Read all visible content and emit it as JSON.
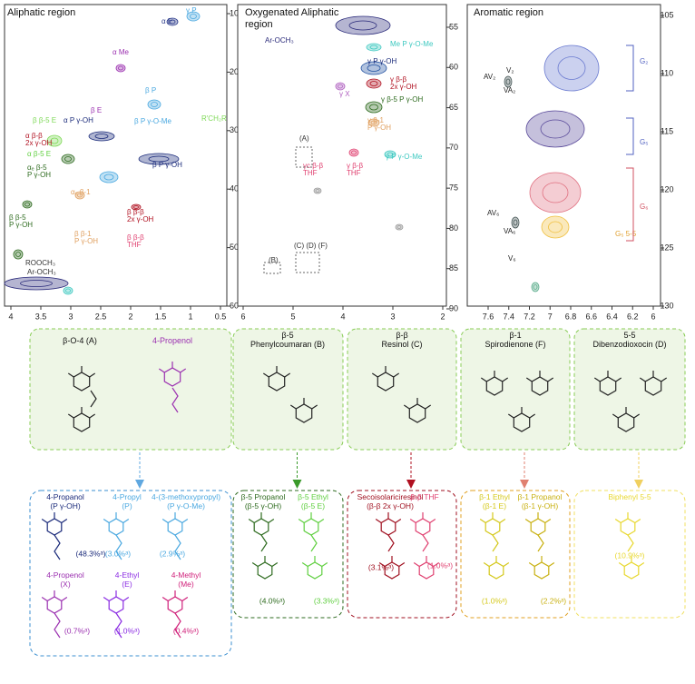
{
  "panels": [
    {
      "title": [
        "Aliphatic region"
      ],
      "xticks": [
        4,
        3.5,
        3,
        2.5,
        2,
        1.5,
        1,
        0.5
      ],
      "yticks": [
        10,
        20,
        30,
        40,
        50,
        60
      ],
      "labels": [
        {
          "lines": [
            "γ P"
          ],
          "color": "#4aa8e0"
        },
        {
          "lines": [
            "α E"
          ],
          "color": "#2a3a8a"
        },
        {
          "lines": [
            "α Me"
          ],
          "color": "#9b30b0"
        },
        {
          "lines": [
            "β P"
          ],
          "color": "#4aa8e0"
        },
        {
          "lines": [
            "β E"
          ],
          "color": "#9b30b0"
        },
        {
          "lines": [
            "β P γ-O-Me"
          ],
          "color": "#4aa8e0"
        },
        {
          "lines": [
            "R'CH₂R"
          ],
          "color": "#7ed957"
        },
        {
          "lines": [
            "β β-5 E"
          ],
          "color": "#7ed957"
        },
        {
          "lines": [
            "α P γ-OH"
          ],
          "color": "#1a2a7a"
        },
        {
          "lines": [
            "α β-β",
            "2x γ-OH"
          ],
          "color": "#b01020"
        },
        {
          "lines": [
            "α β-5 E"
          ],
          "color": "#5fcf3f"
        },
        {
          "lines": [
            "αₑ β-5",
            "P γ-OH"
          ],
          "color": "#2e6b1f"
        },
        {
          "lines": [
            "αₑ β-1"
          ],
          "color": "#e0a060"
        },
        {
          "lines": [
            "β P γ-OH"
          ],
          "color": "#1a2a7a"
        },
        {
          "lines": [
            "β β-β",
            "2x γ-OH"
          ],
          "color": "#b01020"
        },
        {
          "lines": [
            "β β-5",
            "P γ-OH"
          ],
          "color": "#2e6b1f"
        },
        {
          "lines": [
            "β β-1",
            "P γ-OH"
          ],
          "color": "#e0a060"
        },
        {
          "lines": [
            "β β-β",
            "THF"
          ],
          "color": "#e04070"
        },
        {
          "lines": [
            "ROOCH₃"
          ],
          "color": "#333333"
        },
        {
          "lines": [
            "Ar-OCH₃"
          ],
          "color": "#333333"
        }
      ]
    },
    {
      "title": [
        "Oxygenated Aliphatic",
        "region"
      ],
      "xticks": [
        6,
        5,
        4,
        3,
        2
      ],
      "yticks": [
        55,
        60,
        65,
        70,
        75,
        80,
        85,
        90
      ],
      "labels": [
        {
          "lines": [
            "Ar-OCH₃"
          ],
          "color": "#2a2a7a"
        },
        {
          "lines": [
            "Me P γ-O-Me"
          ],
          "color": "#3cc8c0"
        },
        {
          "lines": [
            "γ P γ-OH"
          ],
          "color": "#1a2a7a"
        },
        {
          "lines": [
            "γ β-β",
            "2x γ-OH"
          ],
          "color": "#b01020"
        },
        {
          "lines": [
            "γ X"
          ],
          "color": "#b060c0"
        },
        {
          "lines": [
            "γ β-5 P γ-OH"
          ],
          "color": "#2e6b1f"
        },
        {
          "lines": [
            "γ β-1",
            "P γ-OH"
          ],
          "color": "#e0a060"
        },
        {
          "lines": [
            "(A)"
          ],
          "color": "#333333"
        },
        {
          "lines": [
            "γ P γ-O-Me"
          ],
          "color": "#3cc8c0"
        },
        {
          "lines": [
            "γc β-β",
            "THF"
          ],
          "color": "#e04070"
        },
        {
          "lines": [
            "γ β-β",
            "THF"
          ],
          "color": "#e04070"
        },
        {
          "lines": [
            "(B)"
          ],
          "color": "#333333"
        },
        {
          "lines": [
            "(C) (D) (F)"
          ],
          "color": "#333333"
        }
      ]
    },
    {
      "title": [
        "Aromatic region"
      ],
      "xticks": [
        7.6,
        7.4,
        7.2,
        7,
        6.8,
        6.6,
        6.4,
        6.2,
        6
      ],
      "yticks": [
        105,
        110,
        115,
        120,
        125,
        130
      ],
      "labels": [
        {
          "lines": [
            "AV₂"
          ],
          "color": "#222222"
        },
        {
          "lines": [
            "V₂"
          ],
          "color": "#222222"
        },
        {
          "lines": [
            "VA₂"
          ],
          "color": "#222222"
        },
        {
          "lines": [
            "G₂"
          ],
          "color": "#5060c0"
        },
        {
          "lines": [
            "G₅"
          ],
          "color": "#5060c0"
        },
        {
          "lines": [
            "G₆"
          ],
          "color": "#d05060"
        },
        {
          "lines": [
            "G₅ 5-5"
          ],
          "color": "#e0a030"
        },
        {
          "lines": [
            "AV₆"
          ],
          "color": "#222222"
        },
        {
          "lines": [
            "VA₆"
          ],
          "color": "#222222"
        },
        {
          "lines": [
            "V₆"
          ],
          "color": "#222222"
        }
      ]
    }
  ],
  "linkages": [
    {
      "lines": [
        "β-O-4 (A)"
      ]
    },
    {
      "lines": [
        "4-Propenol"
      ]
    },
    {
      "lines": [
        "β-5",
        "Phenylcoumaran (B)"
      ]
    },
    {
      "lines": [
        "β-β",
        "Resinol (C)"
      ]
    },
    {
      "lines": [
        "β-1",
        "Spirodienone (F)"
      ]
    },
    {
      "lines": [
        "5-5",
        "Dibenzodioxocin (D)"
      ]
    }
  ],
  "products": [
    {
      "color": "#3b8fd0",
      "items": [
        {
          "lines": [
            "4-Propanol",
            "(P γ-OH)"
          ],
          "amount": "(48.3%ᵃ)",
          "color": "#1a2a7a"
        },
        {
          "lines": [
            "4-Propyl",
            "(P)"
          ],
          "amount": "(3.0%ᵃ)",
          "color": "#4aa8e0"
        },
        {
          "lines": [
            "4-(3-methoxypropyl)",
            "(P γ-O-Me)"
          ],
          "amount": "(2.9%ᵃ)",
          "color": "#4aa8e0"
        },
        {
          "lines": [
            "4-Propenol",
            "(X)"
          ],
          "amount": "(0.7%ᵃ)",
          "color": "#9b30b0"
        },
        {
          "lines": [
            "4-Ethyl",
            "(E)"
          ],
          "amount": "(1.0%ᵃ)",
          "color": "#8a2be2"
        },
        {
          "lines": [
            "4-Methyl",
            "(Me)"
          ],
          "amount": "(0.4%ᵃ)",
          "color": "#d0207a"
        }
      ]
    },
    {
      "color": "#2e6b1f",
      "items": [
        {
          "lines": [
            "β-5 Propanol",
            "(β-5 γ-OH)"
          ],
          "amount": "(4.0%ᵃ)",
          "color": "#2e6b1f"
        },
        {
          "lines": [
            "β-5 Ethyl",
            "(β-5 E)"
          ],
          "amount": "(3.3%ᵃ)",
          "color": "#5fcf3f"
        }
      ]
    },
    {
      "color": "#a01020",
      "items": [
        {
          "lines": [
            "Secoisolariciresinol",
            "(β-β 2x γ-OH)"
          ],
          "amount": "(3.1%ᵃ)",
          "color": "#a01020"
        },
        {
          "lines": [
            "β-β THF"
          ],
          "amount": "(1.0%ᵃ)",
          "color": "#e04070"
        }
      ]
    },
    {
      "color": "#e0a020",
      "items": [
        {
          "lines": [
            "β-1 Ethyl",
            "(β-1 E)"
          ],
          "amount": "(1.0%ᵃ)",
          "color": "#d4c81a"
        },
        {
          "lines": [
            "β-1 Propanol",
            "(β-1 γ-OH)"
          ],
          "amount": "(2.2%ᵃ)",
          "color": "#c8b010"
        }
      ]
    },
    {
      "color": "#f0e060",
      "items": [
        {
          "lines": [
            "Biphenyl 5-5"
          ],
          "amount": "(10.9%ᵃ)",
          "color": "#e8d830"
        }
      ]
    }
  ]
}
